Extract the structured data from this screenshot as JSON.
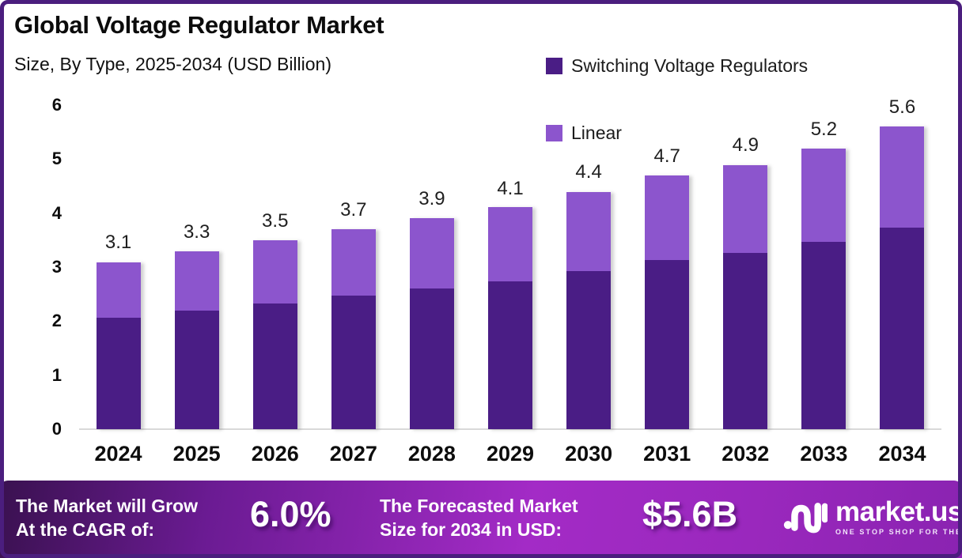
{
  "header": {
    "title": "Global Voltage Regulator Market",
    "subtitle": "Size, By Type, 2025-2034 (USD Billion)"
  },
  "legend": {
    "items": [
      {
        "label": "Switching Voltage Regulators",
        "color": "#4A1D85"
      },
      {
        "label": "Linear",
        "color": "#8C55CD"
      }
    ]
  },
  "chart_data": {
    "type": "bar",
    "stacked": true,
    "title": "Global Voltage Regulator Market",
    "subtitle": "Size, By Type, 2025-2034 (USD Billion)",
    "categories": [
      "2024",
      "2025",
      "2026",
      "2027",
      "2028",
      "2029",
      "2030",
      "2031",
      "2032",
      "2033",
      "2034"
    ],
    "series": [
      {
        "name": "Switching Voltage Regulators",
        "color": "#4A1D85",
        "values": [
          2.07,
          2.2,
          2.33,
          2.47,
          2.6,
          2.73,
          2.93,
          3.13,
          3.27,
          3.47,
          3.73
        ]
      },
      {
        "name": "Linear",
        "color": "#8C55CD",
        "values": [
          1.03,
          1.1,
          1.17,
          1.23,
          1.3,
          1.37,
          1.47,
          1.57,
          1.63,
          1.73,
          1.87
        ]
      }
    ],
    "totals": [
      3.1,
      3.3,
      3.5,
      3.7,
      3.9,
      4.1,
      4.4,
      4.7,
      4.9,
      5.2,
      5.6
    ],
    "total_labels": [
      "3.1",
      "3.3",
      "3.5",
      "3.7",
      "3.9",
      "4.1",
      "4.4",
      "4.7",
      "4.9",
      "5.2",
      "5.6"
    ],
    "xlabel": "",
    "ylabel": "",
    "ylim": [
      0,
      6
    ],
    "yticks": [
      0,
      1,
      2,
      3,
      4,
      5,
      6
    ],
    "grid": false,
    "legend_position": "top-right"
  },
  "footer": {
    "cagr_label_line1": "The Market will Grow",
    "cagr_label_line2": "At the CAGR of:",
    "cagr_value": "6.0%",
    "forecast_label_line1": "The Forecasted Market",
    "forecast_label_line2": "Size for 2034 in USD:",
    "forecast_value": "$5.6B",
    "logo_text": "market.us",
    "logo_tagline": "ONE STOP SHOP FOR THE REPORTS"
  },
  "colors": {
    "switching": "#4A1D85",
    "linear": "#8C55CD",
    "frame_border": "#4B1E7E",
    "axis_line": "#d9d9d9",
    "footer_gradient_start": "#3A1150",
    "footer_gradient_mid": "#A32BC6",
    "footer_gradient_end": "#8A23B1"
  }
}
